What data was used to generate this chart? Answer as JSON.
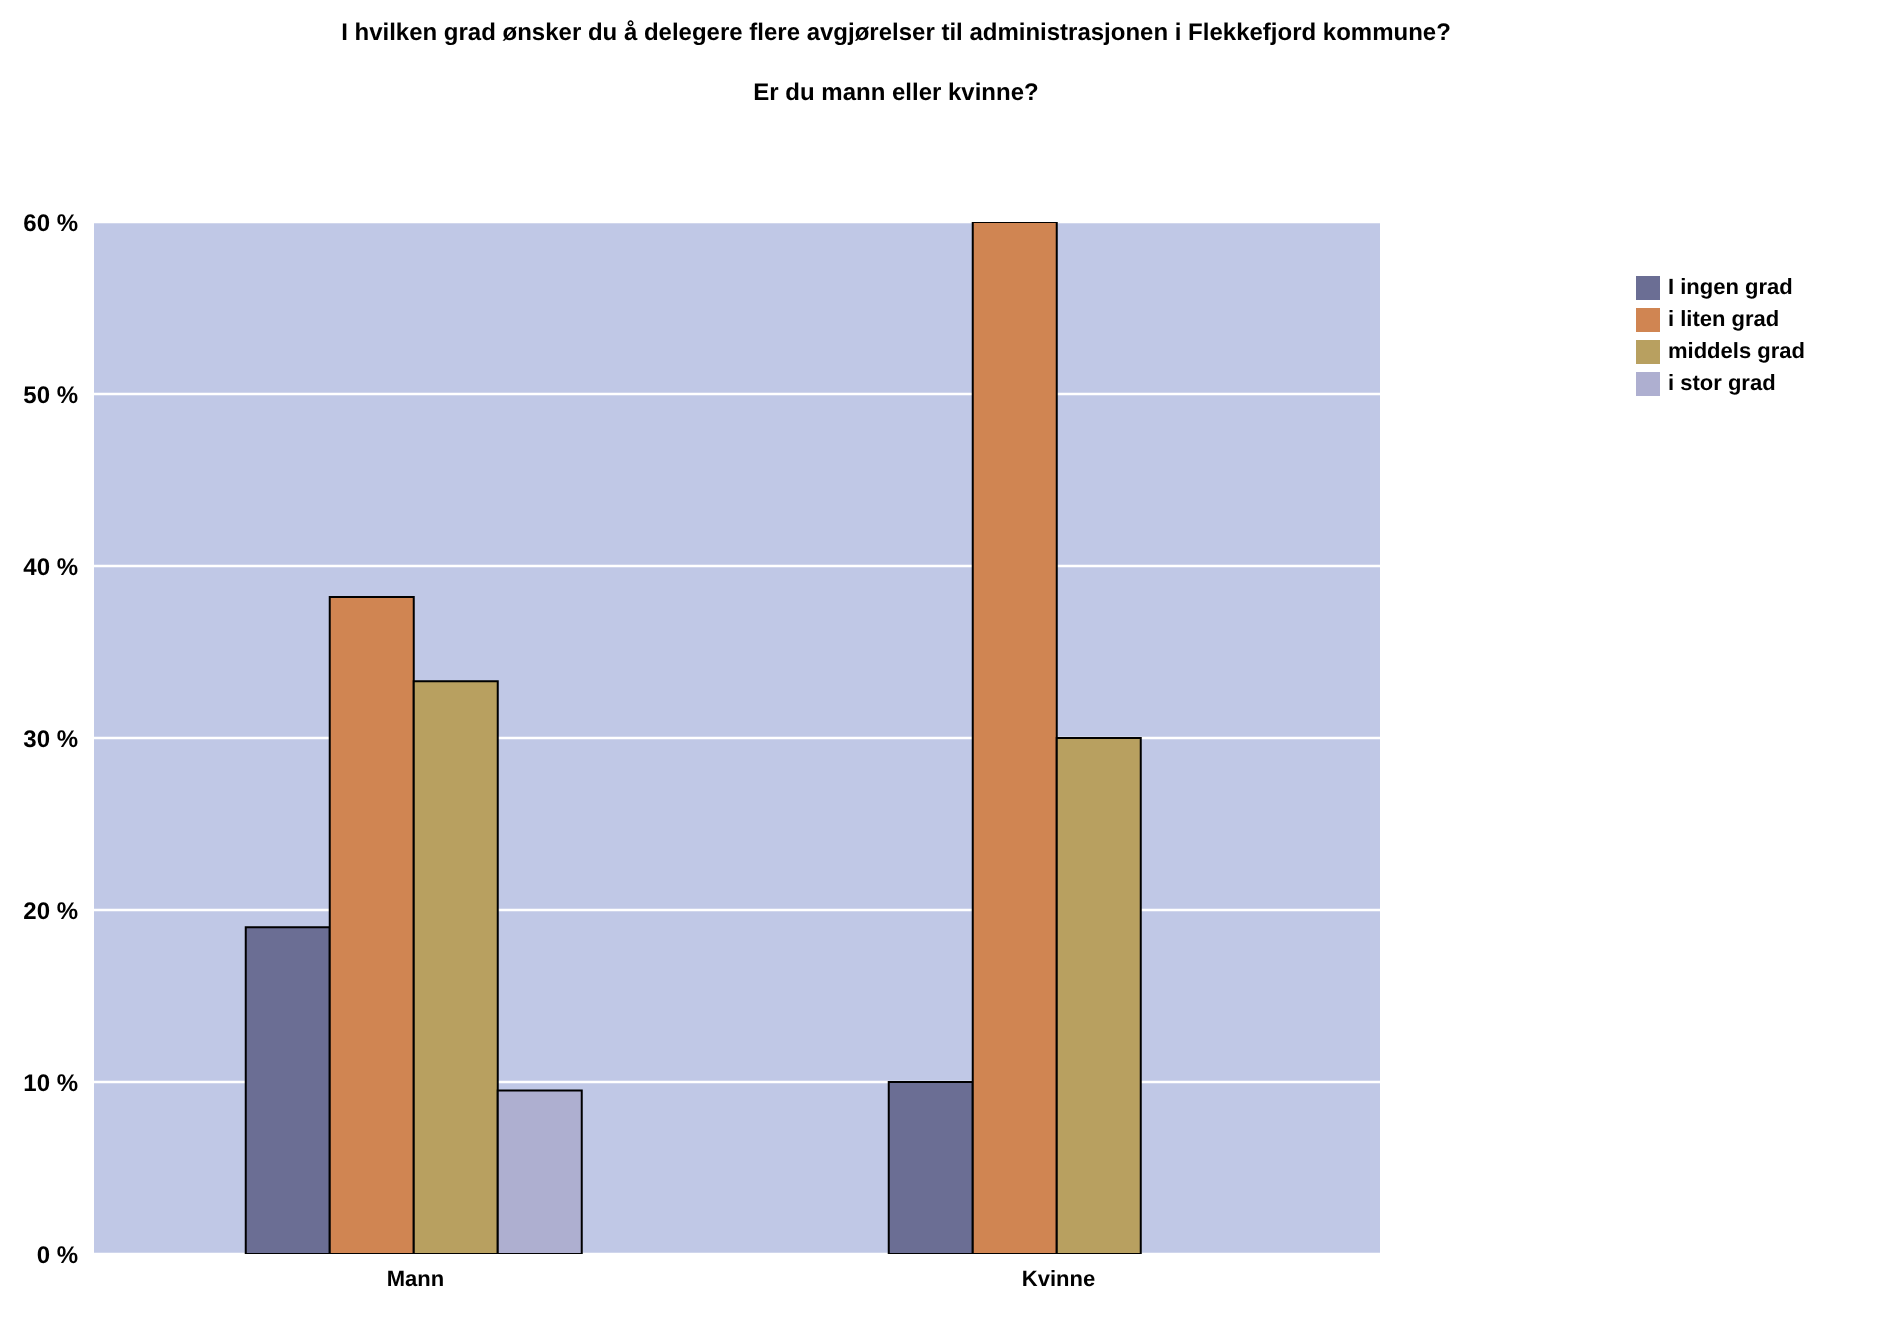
{
  "chart_data": {
    "type": "bar",
    "title": "I hvilken grad ønsker du å delegere flere avgjørelser til administrasjonen i Flekkefjord kommune?",
    "subtitle": "Er du mann eller kvinne?",
    "categories": [
      "Mann",
      "Kvinne"
    ],
    "series": [
      {
        "name": "I ingen grad",
        "color": "#6b6e94",
        "values": [
          19,
          10
        ]
      },
      {
        "name": "i liten grad",
        "color": "#d08552",
        "values": [
          38.2,
          60
        ]
      },
      {
        "name": "middels grad",
        "color": "#b8a060",
        "values": [
          33.3,
          30
        ]
      },
      {
        "name": "i stor grad",
        "color": "#aeafd0",
        "values": [
          9.5,
          0
        ]
      }
    ],
    "ylim": [
      0,
      60
    ],
    "yticks": [
      {
        "value": 0,
        "label": "0 %"
      },
      {
        "value": 10,
        "label": "10 %"
      },
      {
        "value": 20,
        "label": "20 %"
      },
      {
        "value": 30,
        "label": "30 %"
      },
      {
        "value": 40,
        "label": "40 %"
      },
      {
        "value": 50,
        "label": "50 %"
      },
      {
        "value": 60,
        "label": "60 %"
      }
    ],
    "grid": "y",
    "legend": "top right"
  }
}
